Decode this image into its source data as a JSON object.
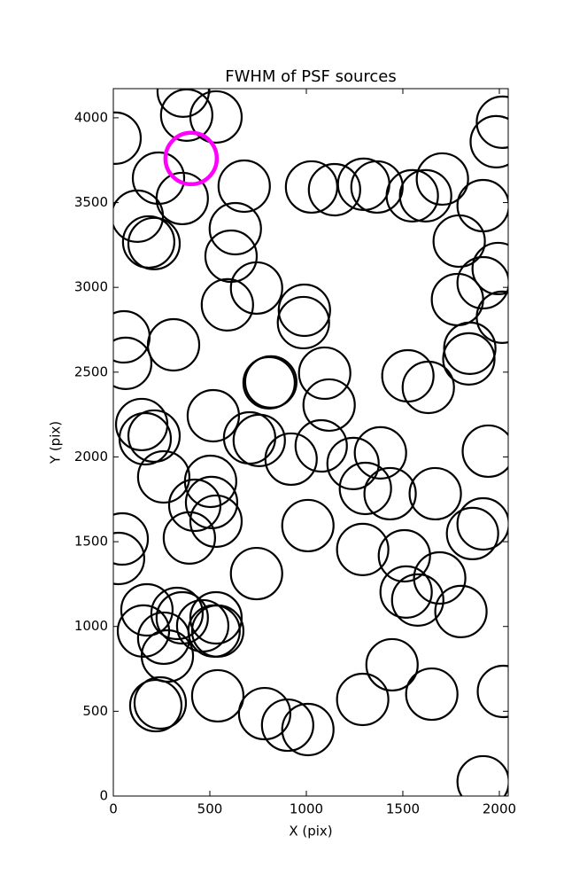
{
  "chart_data": {
    "type": "scatter",
    "title": "FWHM of PSF sources",
    "x_label": "X (pix)",
    "y_label": "Y (pix)",
    "xlim": [
      0,
      2046
    ],
    "ylim": [
      0,
      4172
    ],
    "xticks": [
      0,
      500,
      1000,
      1500,
      2000
    ],
    "yticks": [
      0,
      500,
      1000,
      1500,
      2000,
      2500,
      3000,
      3500,
      4000
    ],
    "series": [
      {
        "color": "#000000",
        "x": [
          9,
          362,
          380,
          532,
          234,
          357,
          124,
          183,
          211,
          678,
          632,
          610,
          591,
          742,
          312,
          55,
          64,
          1027,
          1146,
          1297,
          1366,
          1549,
          1618,
          1705,
          1916,
          1984,
          2016,
          1792,
          1994,
          1916,
          1783,
          2016,
          1847,
          1842,
          990,
          985,
          807,
          816,
          1095,
          1118,
          1526,
          1632,
          147,
          165,
          211,
          518,
          706,
          756,
          921,
          1077,
          1242,
          1384,
          1306,
          1434,
          1668,
          1943,
          261,
          504,
          422,
          509,
          532,
          394,
          1008,
          46,
          27,
          742,
          1292,
          1508,
          1916,
          1861,
          1691,
          1517,
          1577,
          1801,
          174,
          156,
          261,
          280,
          330,
          357,
          463,
          532,
          541,
          522,
          1444,
          1292,
          1650,
          2021,
          220,
          243,
          541,
          784,
          903,
          1008,
          1916
        ],
        "y": [
          3880,
          4157,
          4016,
          4005,
          3644,
          3524,
          3420,
          3268,
          3258,
          3597,
          3346,
          3184,
          2897,
          2996,
          2661,
          2708,
          2552,
          3592,
          3576,
          3608,
          3592,
          3540,
          3540,
          3639,
          3482,
          3859,
          3974,
          3273,
          3111,
          3027,
          2928,
          2824,
          2641,
          2578,
          2865,
          2792,
          2437,
          2442,
          2494,
          2306,
          2478,
          2410,
          2191,
          2107,
          2123,
          2243,
          2112,
          2097,
          1987,
          2065,
          1961,
          2024,
          1814,
          1783,
          1783,
          2034,
          1882,
          1856,
          1715,
          1731,
          1621,
          1522,
          1595,
          1516,
          1401,
          1312,
          1454,
          1417,
          1605,
          1548,
          1286,
          1203,
          1156,
          1088,
          1098,
          973,
          931,
          826,
          1077,
          1051,
          1004,
          1051,
          973,
          973,
          774,
          570,
          601,
          617,
          533,
          549,
          591,
          486,
          418,
          392,
          84
        ]
      },
      {
        "color": "#ff00ff",
        "x": [
          403
        ],
        "y": [
          3760
        ]
      }
    ]
  }
}
